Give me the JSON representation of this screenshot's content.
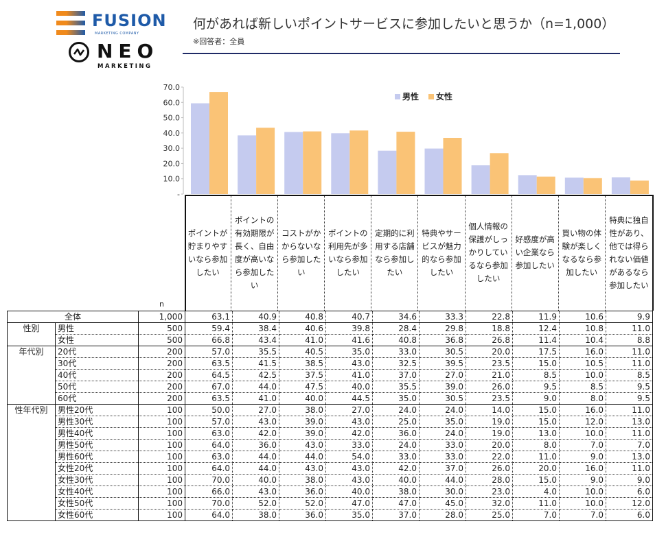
{
  "logos": {
    "fusion": {
      "word": "FUSION",
      "sub": "MARKETING COMPANY",
      "colors": [
        "#f08a1c",
        "#1e5aa8"
      ]
    },
    "neo": {
      "word": "NEO",
      "sub": "MARKETING"
    }
  },
  "header": {
    "title": "何があれば新しいポイントサービスに参加したいと思うか（n=1,000）",
    "subtitle": "※回答者：全員",
    "rule_color": "#1f2a66"
  },
  "chart_data": {
    "type": "bar",
    "title": "何があれば新しいポイントサービスに参加したいと思うか（n=1,000）",
    "xlabel": "",
    "ylabel": "",
    "ylim": [
      0,
      70
    ],
    "yticks": [
      "-",
      "10.0",
      "20.0",
      "30.0",
      "40.0",
      "50.0",
      "60.0",
      "70.0"
    ],
    "ytick_values": [
      0,
      10,
      20,
      30,
      40,
      50,
      60,
      70
    ],
    "grid": false,
    "legend": "top-right",
    "categories": [
      "ポイントが貯まりやすいなら参加したい",
      "ポイントの有効期限が長く、自由度が高いなら参加したい",
      "コストがかからないなら参加したい",
      "ポイントの利用先が多いなら参加したい",
      "定期的に利用する店舗なら参加したい",
      "特典やサービスが魅力的なら参加したい",
      "個人情報の保護がしっかりしているなら参加したい",
      "好感度が高い企業なら参加したい",
      "買い物の体験が楽しくなるなら参加したい",
      "特典に独自性があり、他では得られない価値があるなら参加したい"
    ],
    "series": [
      {
        "name": "男性",
        "color": "#c5cbef",
        "values": [
          59.4,
          38.4,
          40.6,
          39.8,
          28.4,
          29.8,
          18.8,
          12.4,
          10.8,
          11.0
        ]
      },
      {
        "name": "女性",
        "color": "#fac376",
        "values": [
          66.8,
          43.4,
          41.0,
          41.6,
          40.8,
          36.8,
          26.8,
          11.4,
          10.4,
          8.8
        ]
      }
    ]
  },
  "table": {
    "n_header": "n",
    "rows": [
      {
        "group": "全体",
        "label": "",
        "n": "1,000",
        "values": [
          "63.1",
          "40.9",
          "40.8",
          "40.7",
          "34.6",
          "33.3",
          "22.8",
          "11.9",
          "10.6",
          "9.9"
        ]
      },
      {
        "group": "性別",
        "label": "男性",
        "n": "500",
        "values": [
          "59.4",
          "38.4",
          "40.6",
          "39.8",
          "28.4",
          "29.8",
          "18.8",
          "12.4",
          "10.8",
          "11.0"
        ]
      },
      {
        "group": "",
        "label": "女性",
        "n": "500",
        "values": [
          "66.8",
          "43.4",
          "41.0",
          "41.6",
          "40.8",
          "36.8",
          "26.8",
          "11.4",
          "10.4",
          "8.8"
        ]
      },
      {
        "group": "年代別",
        "label": "20代",
        "n": "200",
        "values": [
          "57.0",
          "35.5",
          "40.5",
          "35.0",
          "33.0",
          "30.5",
          "20.0",
          "17.5",
          "16.0",
          "11.0"
        ]
      },
      {
        "group": "",
        "label": "30代",
        "n": "200",
        "values": [
          "63.5",
          "41.5",
          "38.5",
          "43.0",
          "32.5",
          "39.5",
          "23.5",
          "15.0",
          "10.5",
          "11.0"
        ]
      },
      {
        "group": "",
        "label": "40代",
        "n": "200",
        "values": [
          "64.5",
          "42.5",
          "37.5",
          "41.0",
          "37.0",
          "27.0",
          "21.0",
          "8.5",
          "10.0",
          "8.5"
        ]
      },
      {
        "group": "",
        "label": "50代",
        "n": "200",
        "values": [
          "67.0",
          "44.0",
          "47.5",
          "40.0",
          "35.5",
          "39.0",
          "26.0",
          "9.5",
          "8.5",
          "9.5"
        ]
      },
      {
        "group": "",
        "label": "60代",
        "n": "200",
        "values": [
          "63.5",
          "41.0",
          "40.0",
          "44.5",
          "35.0",
          "30.5",
          "23.5",
          "9.0",
          "8.0",
          "9.5"
        ]
      },
      {
        "group": "性年代別",
        "label": "男性20代",
        "n": "100",
        "values": [
          "50.0",
          "27.0",
          "38.0",
          "27.0",
          "24.0",
          "24.0",
          "14.0",
          "15.0",
          "16.0",
          "11.0"
        ]
      },
      {
        "group": "",
        "label": "男性30代",
        "n": "100",
        "values": [
          "57.0",
          "43.0",
          "39.0",
          "43.0",
          "25.0",
          "35.0",
          "19.0",
          "15.0",
          "12.0",
          "13.0"
        ]
      },
      {
        "group": "",
        "label": "男性40代",
        "n": "100",
        "values": [
          "63.0",
          "42.0",
          "39.0",
          "42.0",
          "36.0",
          "24.0",
          "19.0",
          "13.0",
          "10.0",
          "11.0"
        ]
      },
      {
        "group": "",
        "label": "男性50代",
        "n": "100",
        "values": [
          "64.0",
          "36.0",
          "43.0",
          "33.0",
          "24.0",
          "33.0",
          "20.0",
          "8.0",
          "7.0",
          "7.0"
        ]
      },
      {
        "group": "",
        "label": "男性60代",
        "n": "100",
        "values": [
          "63.0",
          "44.0",
          "44.0",
          "54.0",
          "33.0",
          "33.0",
          "22.0",
          "11.0",
          "9.0",
          "13.0"
        ]
      },
      {
        "group": "",
        "label": "女性20代",
        "n": "100",
        "values": [
          "64.0",
          "44.0",
          "43.0",
          "43.0",
          "42.0",
          "37.0",
          "26.0",
          "20.0",
          "16.0",
          "11.0"
        ]
      },
      {
        "group": "",
        "label": "女性30代",
        "n": "100",
        "values": [
          "70.0",
          "40.0",
          "38.0",
          "43.0",
          "40.0",
          "44.0",
          "28.0",
          "15.0",
          "9.0",
          "9.0"
        ]
      },
      {
        "group": "",
        "label": "女性40代",
        "n": "100",
        "values": [
          "66.0",
          "43.0",
          "36.0",
          "40.0",
          "38.0",
          "30.0",
          "23.0",
          "4.0",
          "10.0",
          "6.0"
        ]
      },
      {
        "group": "",
        "label": "女性50代",
        "n": "100",
        "values": [
          "70.0",
          "52.0",
          "52.0",
          "47.0",
          "47.0",
          "45.0",
          "32.0",
          "11.0",
          "10.0",
          "12.0"
        ]
      },
      {
        "group": "",
        "label": "女性60代",
        "n": "100",
        "values": [
          "64.0",
          "38.0",
          "36.0",
          "35.0",
          "37.0",
          "28.0",
          "25.0",
          "7.0",
          "7.0",
          "6.0"
        ]
      }
    ],
    "group_spans": {
      "性別": 2,
      "年代別": 5,
      "性年代別": 10
    }
  }
}
